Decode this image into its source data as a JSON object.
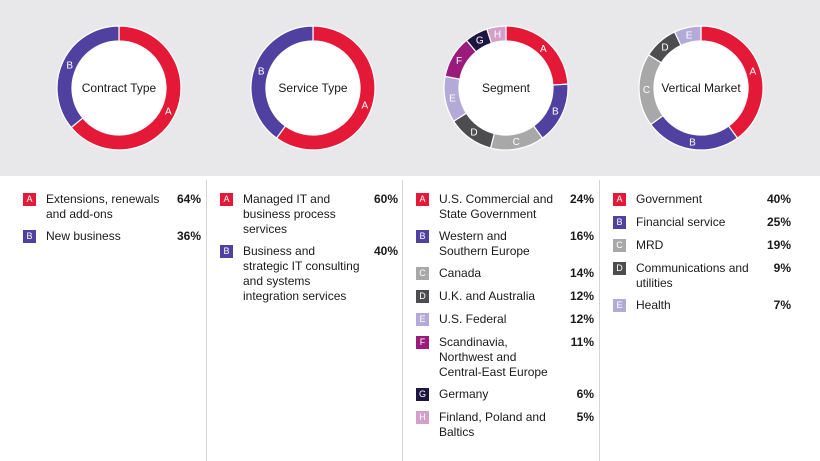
{
  "chart_data": [
    {
      "type": "pie",
      "title": "Contract Type",
      "categories": [
        "A",
        "B"
      ],
      "values": [
        64,
        36
      ],
      "colors": [
        "#e31937",
        "#5041a0"
      ],
      "legend": [
        {
          "code": "A",
          "label": "Extensions, renewals and add-ons",
          "percent": "64%"
        },
        {
          "code": "B",
          "label": "New business",
          "percent": "36%"
        }
      ]
    },
    {
      "type": "pie",
      "title": "Service Type",
      "categories": [
        "A",
        "B"
      ],
      "values": [
        60,
        40
      ],
      "colors": [
        "#e31937",
        "#5041a0"
      ],
      "legend": [
        {
          "code": "A",
          "label": "Managed IT and business process services",
          "percent": "60%"
        },
        {
          "code": "B",
          "label": "Business and strategic IT consulting and systems integration services",
          "percent": "40%"
        }
      ]
    },
    {
      "type": "pie",
      "title": "Segment",
      "categories": [
        "A",
        "B",
        "C",
        "D",
        "E",
        "F",
        "G",
        "H"
      ],
      "values": [
        24,
        16,
        14,
        12,
        12,
        11,
        6,
        5
      ],
      "colors": [
        "#e31937",
        "#5041a0",
        "#a8a8a8",
        "#4d4d4f",
        "#b3aad8",
        "#9b1b7c",
        "#1c1640",
        "#d2a0c8"
      ],
      "legend": [
        {
          "code": "A",
          "label": "U.S. Commercial and State Government",
          "percent": "24%"
        },
        {
          "code": "B",
          "label": "Western and Southern Europe",
          "percent": "16%"
        },
        {
          "code": "C",
          "label": "Canada",
          "percent": "14%"
        },
        {
          "code": "D",
          "label": "U.K. and Australia",
          "percent": "12%"
        },
        {
          "code": "E",
          "label": "U.S. Federal",
          "percent": "12%"
        },
        {
          "code": "F",
          "label": "Scandinavia, Northwest and Central-East Europe",
          "percent": "11%"
        },
        {
          "code": "G",
          "label": "Germany",
          "percent": "6%"
        },
        {
          "code": "H",
          "label": "Finland, Poland and Baltics",
          "percent": "5%"
        }
      ]
    },
    {
      "type": "pie",
      "title": "Vertical Market",
      "categories": [
        "A",
        "B",
        "C",
        "D",
        "E"
      ],
      "values": [
        40,
        25,
        19,
        9,
        7
      ],
      "colors": [
        "#e31937",
        "#5041a0",
        "#a8a8a8",
        "#4d4d4f",
        "#b3aad8"
      ],
      "legend": [
        {
          "code": "A",
          "label": "Government",
          "percent": "40%"
        },
        {
          "code": "B",
          "label": "Financial service",
          "percent": "25%"
        },
        {
          "code": "C",
          "label": "MRD",
          "percent": "19%"
        },
        {
          "code": "D",
          "label": "Communications and utilities",
          "percent": "9%"
        },
        {
          "code": "E",
          "label": "Health",
          "percent": "7%"
        }
      ]
    }
  ]
}
